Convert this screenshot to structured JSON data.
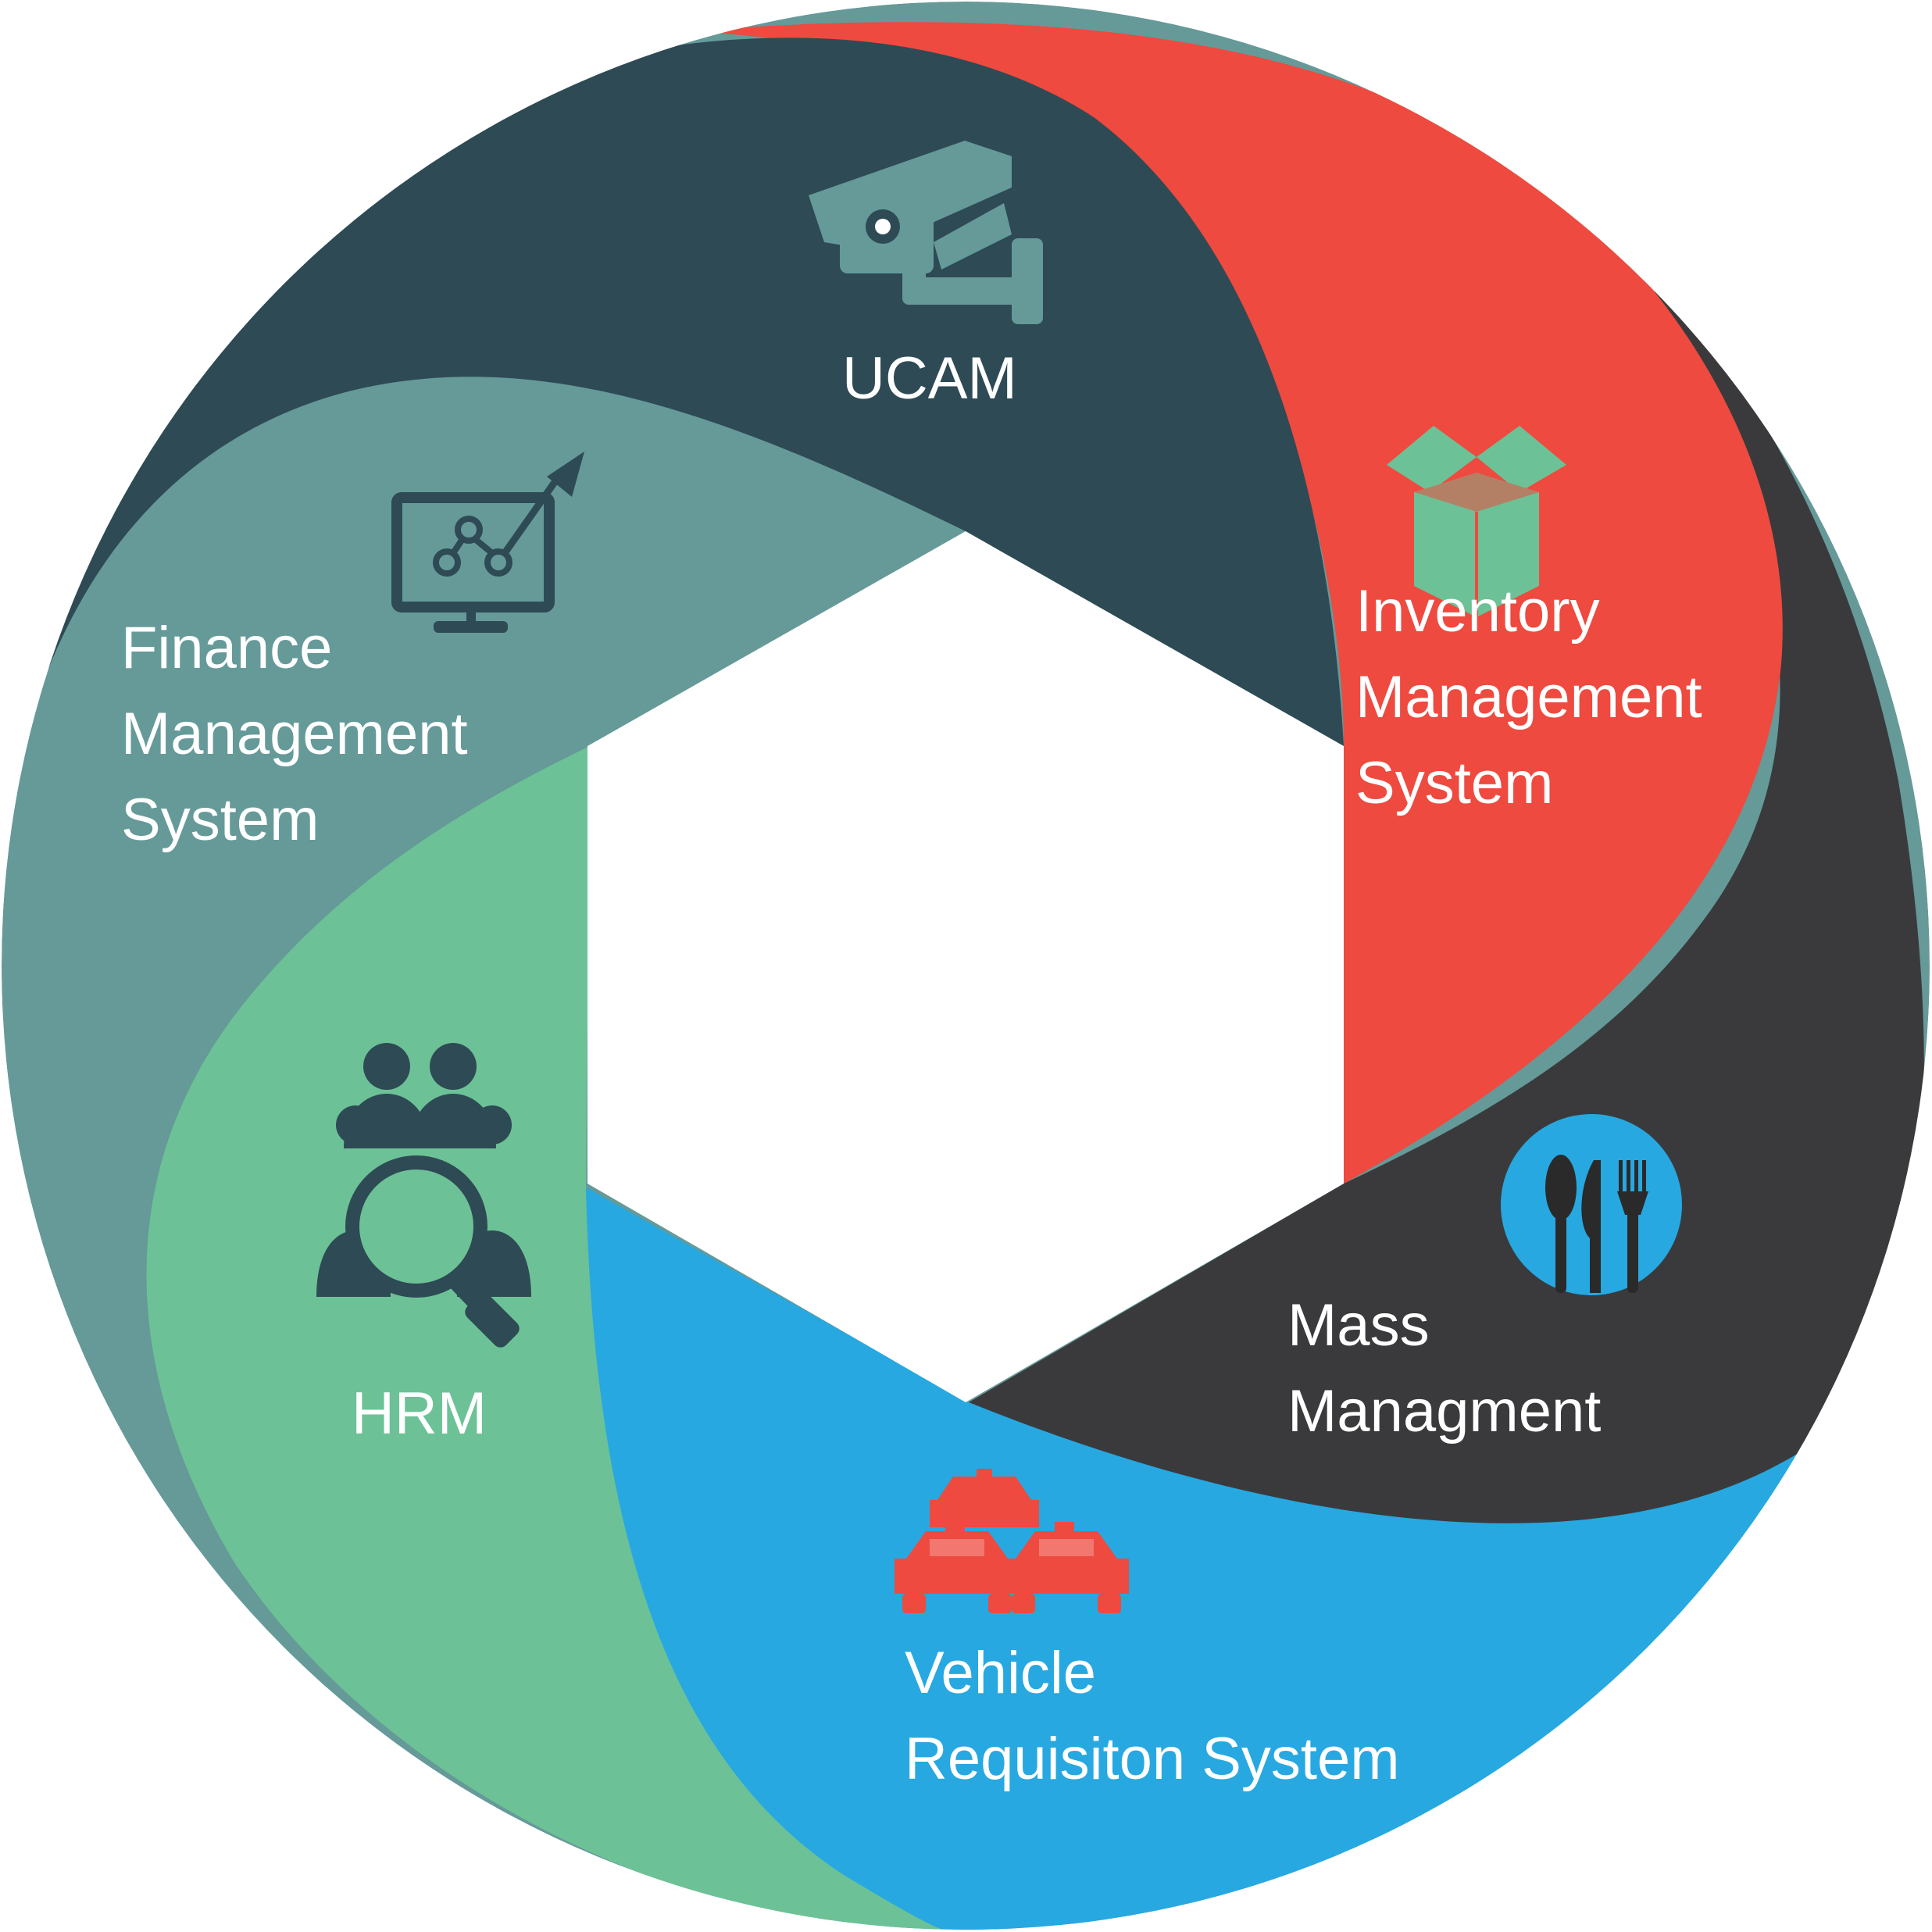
{
  "diagram": {
    "type": "cycle",
    "segments": [
      {
        "id": "ucam",
        "lines": [
          "UCAM"
        ],
        "icon": "security-camera-icon",
        "color": "#2e4a55",
        "icon_color": "#659a99",
        "text_color": "#ffffff"
      },
      {
        "id": "inventory",
        "lines": [
          "Inventory",
          "Management",
          "System"
        ],
        "icon": "open-box-icon",
        "color": "#ee4a3f",
        "icon_color": "#6cc296",
        "text_color": "#ffffff"
      },
      {
        "id": "mass",
        "lines": [
          "Mass",
          "Managment"
        ],
        "icon": "cutlery-plate-icon",
        "color": "#3a3a3c",
        "icon_color": "#27a8e0",
        "text_color": "#ffffff"
      },
      {
        "id": "vehicle",
        "lines": [
          "Vehicle",
          "Requisiton System"
        ],
        "icon": "taxi-cars-icon",
        "color": "#27a8e0",
        "icon_color": "#ee4a3f",
        "text_color": "#ffffff"
      },
      {
        "id": "hrm",
        "lines": [
          "HRM"
        ],
        "icon": "people-search-icon",
        "color": "#6cc296",
        "icon_color": "#2e4a55",
        "text_color": "#ffffff"
      },
      {
        "id": "finance",
        "lines": [
          "Finance",
          "Management",
          "System"
        ],
        "icon": "monitor-growth-chart-icon",
        "color": "#659a99",
        "icon_color": "#2e4a55",
        "text_color": "#ffffff"
      }
    ]
  }
}
